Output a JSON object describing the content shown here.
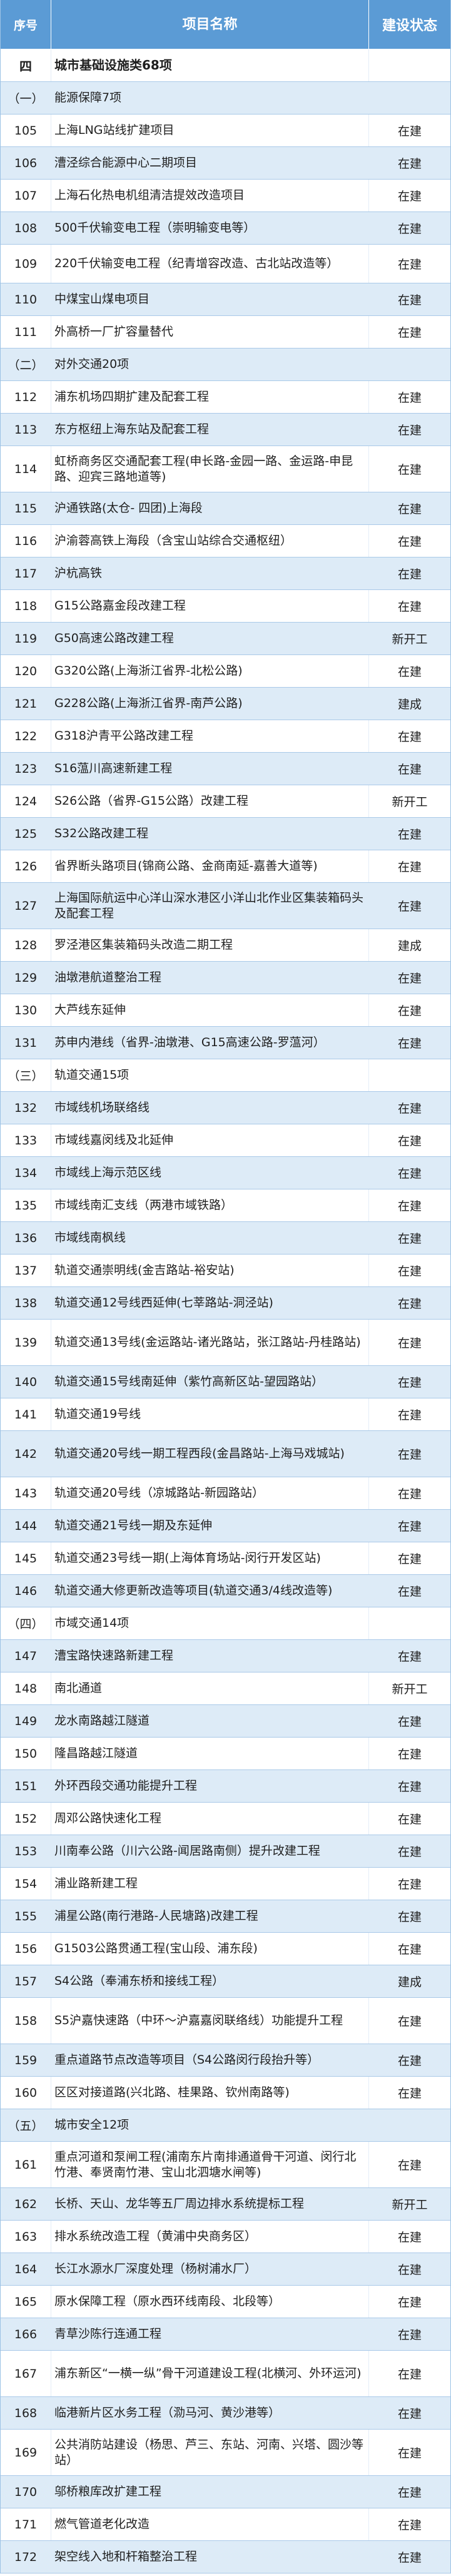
{
  "header": {
    "no": "序号",
    "name": "项目名称",
    "status": "建设状态"
  },
  "colors": {
    "header_bg": "#5b9bd5",
    "stripe": "#ddebf7",
    "border": "#9cc2e5"
  },
  "rows": [
    {
      "type": "category",
      "no": "四",
      "name": "城市基础设施类68项",
      "status": ""
    },
    {
      "type": "section",
      "no": "（一）",
      "name": "能源保障7项",
      "status": ""
    },
    {
      "type": "item",
      "no": "105",
      "name": "上海LNG站线扩建项目",
      "status": "在建"
    },
    {
      "type": "item",
      "no": "106",
      "name": "漕泾综合能源中心二期项目",
      "status": "在建"
    },
    {
      "type": "item",
      "no": "107",
      "name": "上海石化热电机组清洁提效改造项目",
      "status": "在建"
    },
    {
      "type": "item",
      "no": "108",
      "name": "500千伏输变电工程（崇明输变电等）",
      "status": "在建"
    },
    {
      "type": "item",
      "no": "109",
      "name": "220千伏输变电工程（纪青增容改造、古北站改造等）",
      "status": "在建"
    },
    {
      "type": "item",
      "no": "110",
      "name": "中煤宝山煤电项目",
      "status": "在建"
    },
    {
      "type": "item",
      "no": "111",
      "name": "外高桥一厂扩容量替代",
      "status": "在建"
    },
    {
      "type": "section",
      "no": "（二）",
      "name": "对外交通20项",
      "status": ""
    },
    {
      "type": "item",
      "no": "112",
      "name": "浦东机场四期扩建及配套工程",
      "status": "在建"
    },
    {
      "type": "item",
      "no": "113",
      "name": "东方枢纽上海东站及配套工程",
      "status": "在建"
    },
    {
      "type": "item",
      "no": "114",
      "name": "虹桥商务区交通配套工程(申长路-金园一路、金运路-申昆路、迎宾三路地道等)",
      "status": "在建"
    },
    {
      "type": "item",
      "no": "115",
      "name": "沪通铁路(太仓- 四团)上海段",
      "status": "在建"
    },
    {
      "type": "item",
      "no": "116",
      "name": "沪渝蓉高铁上海段（含宝山站综合交通枢纽）",
      "status": "在建"
    },
    {
      "type": "item",
      "no": "117",
      "name": "沪杭高铁",
      "status": "在建"
    },
    {
      "type": "item",
      "no": "118",
      "name": "G15公路嘉金段改建工程",
      "status": "在建"
    },
    {
      "type": "item",
      "no": "119",
      "name": "G50高速公路改建工程",
      "status": "新开工"
    },
    {
      "type": "item",
      "no": "120",
      "name": "G320公路(上海浙江省界-北松公路)",
      "status": "在建"
    },
    {
      "type": "item",
      "no": "121",
      "name": "G228公路(上海浙江省界-南芦公路)",
      "status": "建成"
    },
    {
      "type": "item",
      "no": "122",
      "name": "G318沪青平公路改建工程",
      "status": "在建"
    },
    {
      "type": "item",
      "no": "123",
      "name": "S16蕰川高速新建工程",
      "status": "在建"
    },
    {
      "type": "item",
      "no": "124",
      "name": "S26公路（省界-G15公路）改建工程",
      "status": "新开工"
    },
    {
      "type": "item",
      "no": "125",
      "name": "S32公路改建工程",
      "status": "在建"
    },
    {
      "type": "item",
      "no": "126",
      "name": "省界断头路项目(锦商公路、金商南延-嘉善大道等)",
      "status": "在建"
    },
    {
      "type": "item",
      "no": "127",
      "name": "上海国际航运中心洋山深水港区小洋山北作业区集装箱码头及配套工程",
      "status": "在建"
    },
    {
      "type": "item",
      "no": "128",
      "name": "罗泾港区集装箱码头改造二期工程",
      "status": "建成"
    },
    {
      "type": "item",
      "no": "129",
      "name": "油墩港航道整治工程",
      "status": "在建"
    },
    {
      "type": "item",
      "no": "130",
      "name": "大芦线东延伸",
      "status": "在建"
    },
    {
      "type": "item",
      "no": "131",
      "name": "苏申内港线（省界-油墩港、G15高速公路-罗蕰河）",
      "status": "在建"
    },
    {
      "type": "section",
      "no": "（三）",
      "name": "轨道交通15项",
      "status": ""
    },
    {
      "type": "item",
      "no": "132",
      "name": "市域线机场联络线",
      "status": "在建"
    },
    {
      "type": "item",
      "no": "133",
      "name": "市域线嘉闵线及北延伸",
      "status": "在建"
    },
    {
      "type": "item",
      "no": "134",
      "name": "市域线上海示范区线",
      "status": "在建"
    },
    {
      "type": "item",
      "no": "135",
      "name": "市域线南汇支线（两港市域铁路）",
      "status": "在建"
    },
    {
      "type": "item",
      "no": "136",
      "name": "市域线南枫线",
      "status": "在建"
    },
    {
      "type": "item",
      "no": "137",
      "name": "轨道交通崇明线(金吉路站-裕安站)",
      "status": "在建"
    },
    {
      "type": "item",
      "no": "138",
      "name": "轨道交通12号线西延伸(七莘路站-洞泾站)",
      "status": "在建"
    },
    {
      "type": "item",
      "no": "139",
      "name": "轨道交通13号线(金运路站-诸光路站，张江路站-丹桂路站)",
      "status": "在建"
    },
    {
      "type": "item",
      "no": "140",
      "name": "轨道交通15号线南延伸（紫竹高新区站-望园路站）",
      "status": "在建"
    },
    {
      "type": "item",
      "no": "141",
      "name": "轨道交通19号线",
      "status": "在建"
    },
    {
      "type": "item",
      "no": "142",
      "name": "轨道交通20号线一期工程西段(金昌路站-上海马戏城站)",
      "status": "在建"
    },
    {
      "type": "item",
      "no": "143",
      "name": "轨道交通20号线（凉城路站-新园路站）",
      "status": "在建"
    },
    {
      "type": "item",
      "no": "144",
      "name": "轨道交通21号线一期及东延伸",
      "status": "在建"
    },
    {
      "type": "item",
      "no": "145",
      "name": "轨道交通23号线一期(上海体育场站-闵行开发区站)",
      "status": "在建"
    },
    {
      "type": "item",
      "no": "146",
      "name": "轨道交通大修更新改造等项目(轨道交通3/4线改造等)",
      "status": "在建"
    },
    {
      "type": "section",
      "no": "（四）",
      "name": "市域交通14项",
      "status": ""
    },
    {
      "type": "item",
      "no": "147",
      "name": "漕宝路快速路新建工程",
      "status": "在建"
    },
    {
      "type": "item",
      "no": "148",
      "name": "南北通道",
      "status": "新开工"
    },
    {
      "type": "item",
      "no": "149",
      "name": "龙水南路越江隧道",
      "status": "在建"
    },
    {
      "type": "item",
      "no": "150",
      "name": "隆昌路越江隧道",
      "status": "在建"
    },
    {
      "type": "item",
      "no": "151",
      "name": "外环西段交通功能提升工程",
      "status": "在建"
    },
    {
      "type": "item",
      "no": "152",
      "name": "周邓公路快速化工程",
      "status": "在建"
    },
    {
      "type": "item",
      "no": "153",
      "name": "川南奉公路（川六公路-闻居路南侧）提升改建工程",
      "status": "在建"
    },
    {
      "type": "item",
      "no": "154",
      "name": "浦业路新建工程",
      "status": "在建"
    },
    {
      "type": "item",
      "no": "155",
      "name": "浦星公路(南行港路-人民塘路)改建工程",
      "status": "在建"
    },
    {
      "type": "item",
      "no": "156",
      "name": "G1503公路贯通工程(宝山段、浦东段)",
      "status": "在建"
    },
    {
      "type": "item",
      "no": "157",
      "name": "S4公路（奉浦东桥和接线工程）",
      "status": "建成"
    },
    {
      "type": "item",
      "no": "158",
      "name": "S5沪嘉快速路（中环～沪嘉嘉闵联络线）功能提升工程",
      "status": "在建"
    },
    {
      "type": "item",
      "no": "159",
      "name": "重点道路节点改造等项目（S4公路闵行段抬升等）",
      "status": "在建"
    },
    {
      "type": "item",
      "no": "160",
      "name": "区区对接道路(兴北路、桂果路、钦州南路等)",
      "status": "在建"
    },
    {
      "type": "section",
      "no": "（五）",
      "name": "城市安全12项",
      "status": ""
    },
    {
      "type": "item",
      "no": "161",
      "name": "重点河道和泵闸工程(浦南东片南排通道骨干河道、闵行北竹港、奉贤南竹港、宝山北泗塘水闸等)",
      "status": "在建"
    },
    {
      "type": "item",
      "no": "162",
      "name": "长桥、天山、龙华等五厂周边排水系统提标工程",
      "status": "新开工"
    },
    {
      "type": "item",
      "no": "163",
      "name": "排水系统改造工程（黄浦中央商务区）",
      "status": "在建"
    },
    {
      "type": "item",
      "no": "164",
      "name": "长江水源水厂深度处理（杨树浦水厂）",
      "status": "在建"
    },
    {
      "type": "item",
      "no": "165",
      "name": "原水保障工程（原水西环线南段、北段等）",
      "status": "在建"
    },
    {
      "type": "item",
      "no": "166",
      "name": "青草沙陈行连通工程",
      "status": "在建"
    },
    {
      "type": "item",
      "no": "167",
      "name": "浦东新区“一横一纵”骨干河道建设工程(北横河、外环运河)",
      "status": "在建"
    },
    {
      "type": "item",
      "no": "168",
      "name": "临港新片区水务工程（泐马河、黄沙港等）",
      "status": "在建"
    },
    {
      "type": "item",
      "no": "169",
      "name": "公共消防站建设（杨思、芦三、东站、河南、兴塔、圆沙等站）",
      "status": "在建"
    },
    {
      "type": "item",
      "no": "170",
      "name": "邬桥粮库改扩建工程",
      "status": "在建"
    },
    {
      "type": "item",
      "no": "171",
      "name": "燃气管道老化改造",
      "status": "在建"
    },
    {
      "type": "item",
      "no": "172",
      "name": "架空线入地和杆箱整治工程",
      "status": "在建"
    }
  ]
}
